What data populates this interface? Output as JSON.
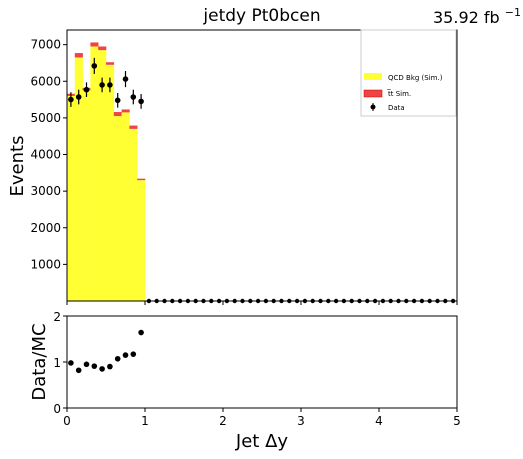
{
  "chart_data": [
    {
      "type": "bar",
      "panel": "main",
      "title": "jetdy  Pt0bcen",
      "luminosity": {
        "value": "35.92 fb",
        "superscript": "−1"
      },
      "xlabel": "",
      "ylabel": "Events",
      "xlim": [
        0,
        5
      ],
      "ylim": [
        0,
        7400
      ],
      "x_ticks": [
        0,
        1,
        2,
        3,
        4,
        5
      ],
      "y_ticks": [
        1000,
        2000,
        3000,
        4000,
        5000,
        6000,
        7000
      ],
      "y_tick_labels": [
        "1000",
        "2000",
        "3000",
        "4000",
        "5000",
        "6000",
        "7000"
      ],
      "bin_width": 0.1,
      "bin_edges": [
        0.0,
        0.1,
        0.2,
        0.3,
        0.4,
        0.5,
        0.6,
        0.7,
        0.8,
        0.9,
        1.0
      ],
      "stacked": true,
      "series": [
        {
          "name": "QCD Bkg (Sim.)",
          "color": "#ffff33",
          "values": [
            5600,
            6650,
            5750,
            6950,
            6850,
            6450,
            5050,
            5150,
            4700,
            3300
          ]
        },
        {
          "name": "t̅t Sim.",
          "color": "#ee4444",
          "values": [
            60,
            120,
            70,
            110,
            100,
            70,
            110,
            80,
            90,
            40
          ]
        }
      ],
      "data": {
        "name": "Data",
        "color": "#000000",
        "x": [
          0.05,
          0.15,
          0.25,
          0.35,
          0.45,
          0.55,
          0.65,
          0.75,
          0.85,
          0.95
        ],
        "y": [
          5500,
          5570,
          5770,
          6420,
          5900,
          5900,
          5480,
          6060,
          5570,
          5450
        ],
        "yerr": [
          200,
          200,
          200,
          220,
          200,
          200,
          200,
          220,
          200,
          200
        ],
        "zero_x_start": 1.05,
        "zero_x_end": 4.95
      },
      "legend": {
        "placement": "top-right"
      }
    },
    {
      "type": "scatter",
      "panel": "ratio",
      "xlabel": "Jet Δy",
      "ylabel": "Data/MC",
      "xlim": [
        0,
        5
      ],
      "ylim": [
        0,
        2
      ],
      "x_ticks": [
        0,
        1,
        2,
        3,
        4,
        5
      ],
      "x_tick_labels": [
        "0",
        "1",
        "2",
        "3",
        "4",
        "5"
      ],
      "y_ticks": [
        0,
        1,
        2
      ],
      "y_tick_labels": [
        "0",
        "1",
        "2"
      ],
      "x": [
        0.05,
        0.15,
        0.25,
        0.35,
        0.45,
        0.55,
        0.65,
        0.75,
        0.85,
        0.95
      ],
      "y": [
        0.98,
        0.82,
        0.95,
        0.91,
        0.85,
        0.9,
        1.07,
        1.15,
        1.17,
        1.64
      ]
    }
  ]
}
